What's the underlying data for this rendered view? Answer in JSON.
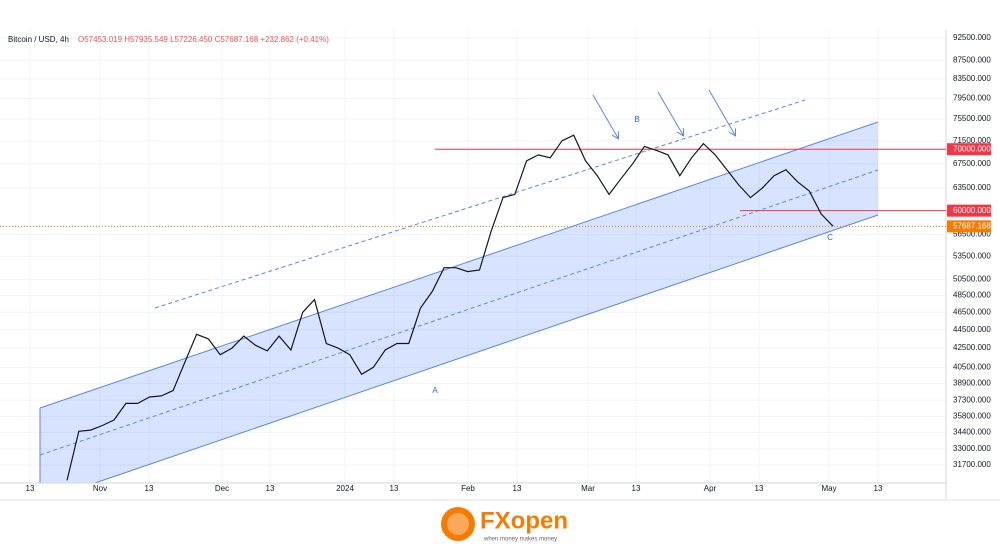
{
  "chart_data": {
    "type": "line",
    "title": "Bitcoin / USD, 4h",
    "subtitle": "O57453.019 H57935.549 L57226.450 C57687.168 +232.862 (+0.41%)",
    "log_scale": true,
    "grid": true,
    "color": "#131722",
    "xticks": [
      "13",
      "Nov",
      "13",
      "Dec",
      "13",
      "2024",
      "13",
      "Feb",
      "13",
      "Mar",
      "13",
      "Apr",
      "13",
      "May",
      "13"
    ],
    "values": [
      30500,
      34500,
      34600,
      35000,
      35500,
      37000,
      37000,
      37600,
      37700,
      38200,
      41000,
      44000,
      43500,
      41800,
      42500,
      43800,
      42800,
      42200,
      43800,
      42300,
      46500,
      48000,
      43000,
      42500,
      41800,
      39800,
      40500,
      42300,
      43000,
      43000,
      47000,
      49000,
      52000,
      52000,
      51500,
      51700,
      57000,
      62000,
      62500,
      68000,
      69000,
      68500,
      71500,
      72500,
      68000,
      65500,
      62500,
      65000,
      67500,
      70500,
      69800,
      69000,
      65500,
      68500,
      71000,
      69000,
      66500,
      64000,
      62000,
      63500,
      65500,
      66500,
      64500,
      63000,
      59500,
      57700
    ],
    "ylim": [
      30300,
      94400
    ],
    "yticks": [
      {
        "value": 92500,
        "label": "92500.000"
      },
      {
        "value": 87500,
        "label": "87500.000"
      },
      {
        "value": 83500,
        "label": "83500.000"
      },
      {
        "value": 79500,
        "label": "79500.000"
      },
      {
        "value": 75500,
        "label": "75500.000"
      },
      {
        "value": 71500,
        "label": "71500.000"
      },
      {
        "value": 67500,
        "label": "67500.000"
      },
      {
        "value": 63500,
        "label": "63500.000"
      },
      {
        "value": 56500,
        "label": "56500.000"
      },
      {
        "value": 53500,
        "label": "53500.000"
      },
      {
        "value": 50500,
        "label": "50500.000"
      },
      {
        "value": 48500,
        "label": "48500.000"
      },
      {
        "value": 46500,
        "label": "46500.000"
      },
      {
        "value": 44500,
        "label": "44500.000"
      },
      {
        "value": 42500,
        "label": "42500.000"
      },
      {
        "value": 40500,
        "label": "40500.000"
      },
      {
        "value": 38900,
        "label": "38900.000"
      },
      {
        "value": 37300,
        "label": "37300.000"
      },
      {
        "value": 35800,
        "label": "35800.000"
      },
      {
        "value": 34400,
        "label": "34400.000"
      },
      {
        "value": 33000,
        "label": "33000.000"
      },
      {
        "value": 31700,
        "label": "31700.000"
      }
    ],
    "levels": [
      {
        "value": 70000,
        "label": "70000.000",
        "color": "#f23645"
      },
      {
        "value": 60000,
        "label": "60000.000",
        "color": "#f23645"
      }
    ],
    "last_price": {
      "value": 57687.168,
      "label": "57687.168",
      "color": "#f57c00"
    },
    "annotations": [
      "A",
      "B",
      "C"
    ]
  },
  "footer": {
    "brand": "FXopen",
    "tagline": "when money makes money"
  }
}
